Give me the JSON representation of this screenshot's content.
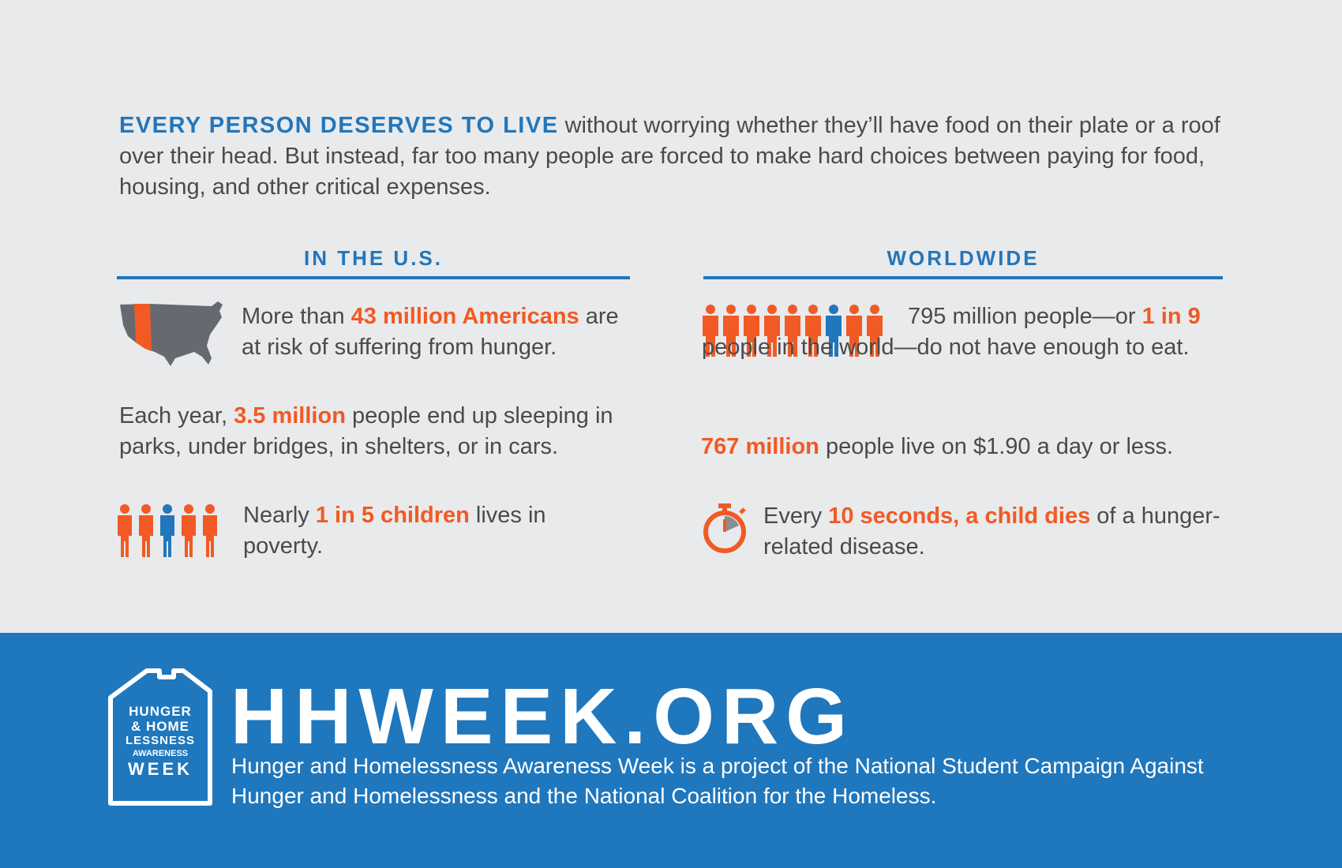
{
  "intro": {
    "lead": "EVERY PERSON DESERVES TO LIVE",
    "body": " without worrying whether they’ll have food on their plate or a roof over their head. But instead, far too many people are forced to make hard choices between paying for food, housing, and other critical expenses."
  },
  "us": {
    "heading": "IN THE U.S.",
    "stat1": {
      "pre": "More than ",
      "hl": "43 million Americans",
      "post": " are at risk of suffering from hunger."
    },
    "stat2": {
      "pre": "Each year, ",
      "hl": "3.5 million",
      "post": " people end up sleeping in parks, under bridges, in shelters, or in cars."
    },
    "stat3": {
      "pre": "Nearly ",
      "hl": "1 in 5 children",
      "post": " lives in poverty."
    }
  },
  "world": {
    "heading": "WORLDWIDE",
    "stat1": {
      "pre": "795 million people—or ",
      "hl": "1 in 9",
      "post": " people in the world—do not have enough to eat."
    },
    "stat2": {
      "pre": "",
      "hl": "767 million",
      "post": " people live on $1.90 a day or less."
    },
    "stat3": {
      "pre": "Every ",
      "hl": "10 seconds, a child dies",
      "post": " of a hunger-related disease."
    }
  },
  "footer": {
    "site": "HHWEEK.ORG",
    "text": "Hunger and Homelessness Awareness Week is a project of the National Student Campaign Against Hunger and Homelessness and the National Coalition for the Homeless.",
    "logo": {
      "line1": "HUNGER",
      "line2": "& HOME",
      "line3": "LESSNESS",
      "line4": "AWARENESS",
      "line5": "WEEK"
    }
  },
  "colors": {
    "blue": "#2276bb",
    "orange": "#f15a24",
    "gray": "#4a4a4c",
    "background": "#e9eaeb"
  },
  "icons": {
    "us_map": "us-map-icon",
    "children": "children-icon",
    "people": "people-icon",
    "stopwatch": "stopwatch-icon"
  }
}
